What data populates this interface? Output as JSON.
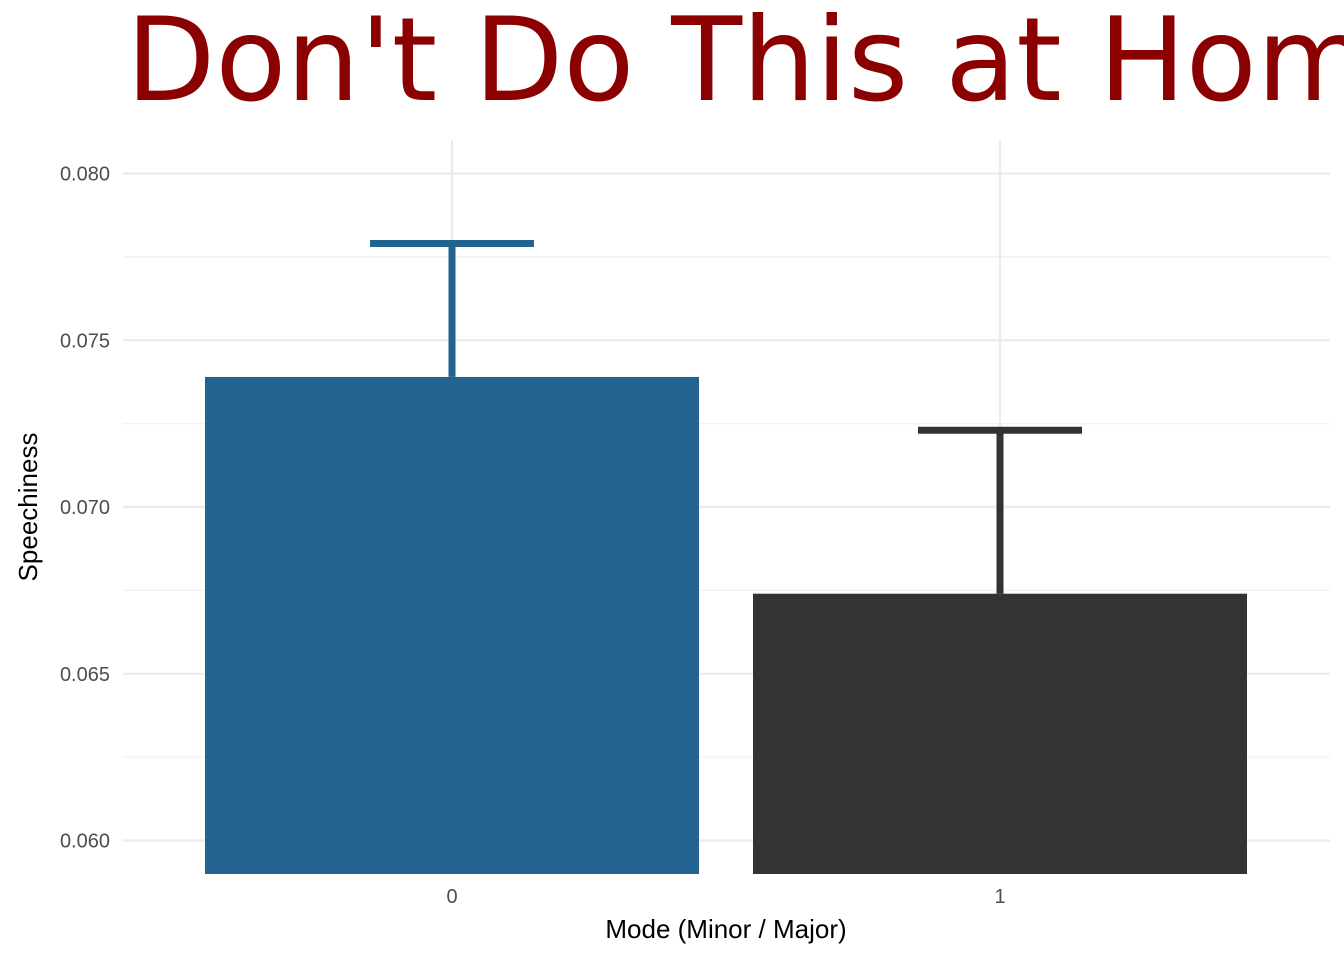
{
  "chart_data": {
    "type": "bar",
    "title": "Don't Do This at Home",
    "xlabel": "Mode (Minor / Major)",
    "ylabel": "Speechiness",
    "categories": [
      "0",
      "1"
    ],
    "values": [
      0.0739,
      0.0674
    ],
    "error_upper": [
      0.0779,
      0.0723
    ],
    "bar_colors": [
      "#226391",
      "#333333"
    ],
    "ylim": [
      0.059,
      0.081
    ],
    "yticks": [
      0.06,
      0.065,
      0.07,
      0.075,
      0.08
    ],
    "ytick_labels": [
      "0.060",
      "0.065",
      "0.070",
      "0.075",
      "0.080"
    ],
    "grid": true,
    "legend": "none"
  },
  "colors": {
    "title": "#8b0000",
    "background": "#ffffff",
    "grid": "#ebebeb"
  }
}
